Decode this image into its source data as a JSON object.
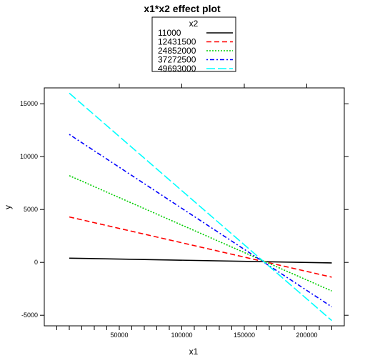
{
  "chart_data": {
    "type": "line",
    "title": "x1*x2 effect plot",
    "xlabel": "x1",
    "ylabel": "y",
    "xlim": [
      -10000,
      230000
    ],
    "ylim": [
      -6000,
      16500
    ],
    "x_ticks": [
      50000,
      100000,
      150000,
      200000
    ],
    "x_tick_labels": [
      "50000",
      "100000",
      "150000",
      "200000"
    ],
    "x_minor_ticks": [
      0,
      10000,
      20000,
      30000,
      40000,
      60000,
      70000,
      80000,
      90000,
      110000,
      120000,
      130000,
      140000,
      160000,
      170000,
      180000,
      190000,
      210000,
      220000
    ],
    "y_ticks": [
      -5000,
      0,
      5000,
      10000,
      15000
    ],
    "y_tick_labels": [
      "-5000",
      "0",
      "5000",
      "10000",
      "15000"
    ],
    "legend": {
      "title": "x2",
      "position": "top-center"
    },
    "series": [
      {
        "name": "11000",
        "color": "#000000",
        "dash": "solid",
        "x": [
          10000,
          220000
        ],
        "y": [
          400,
          -50
        ]
      },
      {
        "name": "12431500",
        "color": "#ff0000",
        "dash": "dashed",
        "x": [
          10000,
          220000
        ],
        "y": [
          4300,
          -1400
        ]
      },
      {
        "name": "24852000",
        "color": "#00cd00",
        "dash": "dotted",
        "x": [
          10000,
          220000
        ],
        "y": [
          8200,
          -2700
        ]
      },
      {
        "name": "37272500",
        "color": "#0000ff",
        "dash": "dotdash",
        "x": [
          10000,
          220000
        ],
        "y": [
          12100,
          -4200
        ]
      },
      {
        "name": "49693000",
        "color": "#00ffff",
        "dash": "longdash",
        "x": [
          10000,
          220000
        ],
        "y": [
          16000,
          -5500
        ]
      }
    ]
  }
}
